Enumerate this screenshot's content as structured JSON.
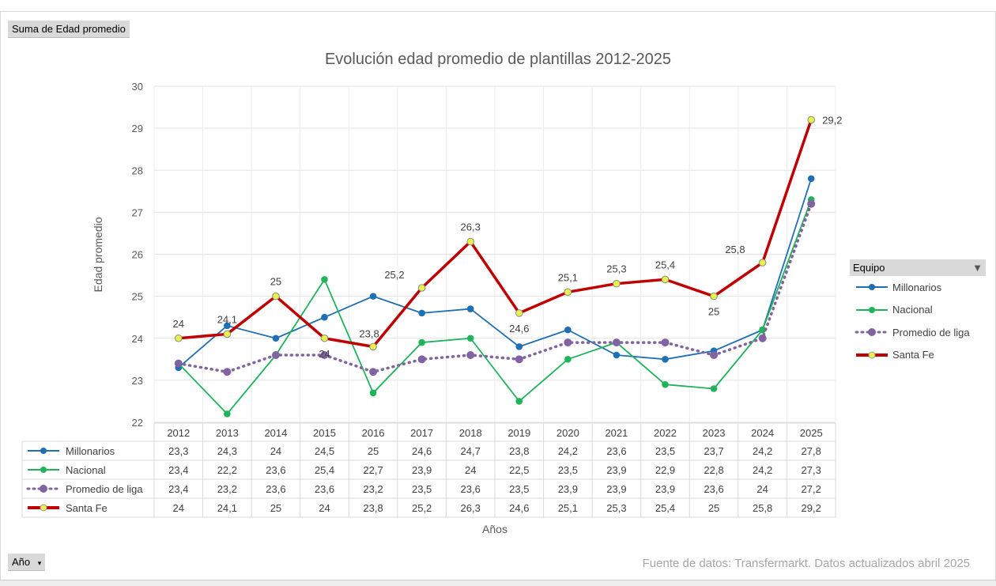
{
  "field_button": "Suma de Edad promedio",
  "axis_field_button": "Año",
  "legend_title": "Equipo",
  "source_note": "Fuente de datos: Transfermarkt. Datos actualizados abril 2025",
  "chart_data": {
    "type": "line",
    "title": "Evolución edad promedio de plantillas 2012-2025",
    "xlabel": "Años",
    "ylabel": "Edad promedio",
    "ylim": [
      22,
      30
    ],
    "yticks": [
      "22",
      "23",
      "24",
      "25",
      "26",
      "27",
      "28",
      "29",
      "30"
    ],
    "grid": true,
    "legend_placement": "right",
    "categories": [
      "2012",
      "2013",
      "2014",
      "2015",
      "2016",
      "2017",
      "2018",
      "2019",
      "2020",
      "2021",
      "2022",
      "2023",
      "2024",
      "2025"
    ],
    "series": [
      {
        "name": "Millonarios",
        "color": "#1f6fb5",
        "style": "solid",
        "values": [
          23.3,
          24.3,
          24,
          24.5,
          25,
          24.6,
          24.7,
          23.8,
          24.2,
          23.6,
          23.5,
          23.7,
          24.2,
          27.8
        ],
        "labels": [
          "23,3",
          "24,3",
          "24",
          "24,5",
          "25",
          "24,6",
          "24,7",
          "23,8",
          "24,2",
          "23,6",
          "23,5",
          "23,7",
          "24,2",
          "27,8"
        ]
      },
      {
        "name": "Nacional",
        "color": "#1fb35a",
        "style": "solid",
        "values": [
          23.4,
          22.2,
          23.6,
          25.4,
          22.7,
          23.9,
          24,
          22.5,
          23.5,
          23.9,
          22.9,
          22.8,
          24.2,
          27.3
        ],
        "labels": [
          "23,4",
          "22,2",
          "23,6",
          "25,4",
          "22,7",
          "23,9",
          "24",
          "22,5",
          "23,5",
          "23,9",
          "22,9",
          "22,8",
          "24,2",
          "27,3"
        ]
      },
      {
        "name": "Promedio de liga",
        "color": "#8064a2",
        "style": "dotted",
        "values": [
          23.4,
          23.2,
          23.6,
          23.6,
          23.2,
          23.5,
          23.6,
          23.5,
          23.9,
          23.9,
          23.9,
          23.6,
          24,
          27.2
        ],
        "labels": [
          "23,4",
          "23,2",
          "23,6",
          "23,6",
          "23,2",
          "23,5",
          "23,6",
          "23,5",
          "23,9",
          "23,9",
          "23,9",
          "23,6",
          "24",
          "27,2"
        ]
      },
      {
        "name": "Santa Fe",
        "color": "#c00000",
        "marker": "#e8f24a",
        "style": "thick",
        "values": [
          24,
          24.1,
          25,
          24,
          23.8,
          25.2,
          26.3,
          24.6,
          25.1,
          25.3,
          25.4,
          25,
          25.8,
          29.2
        ],
        "labels": [
          "24",
          "24,1",
          "25",
          "24",
          "23,8",
          "25,2",
          "26,3",
          "24,6",
          "25,1",
          "25,3",
          "25,4",
          "25",
          "25,8",
          "29,2"
        ],
        "data_labels": true
      }
    ]
  }
}
